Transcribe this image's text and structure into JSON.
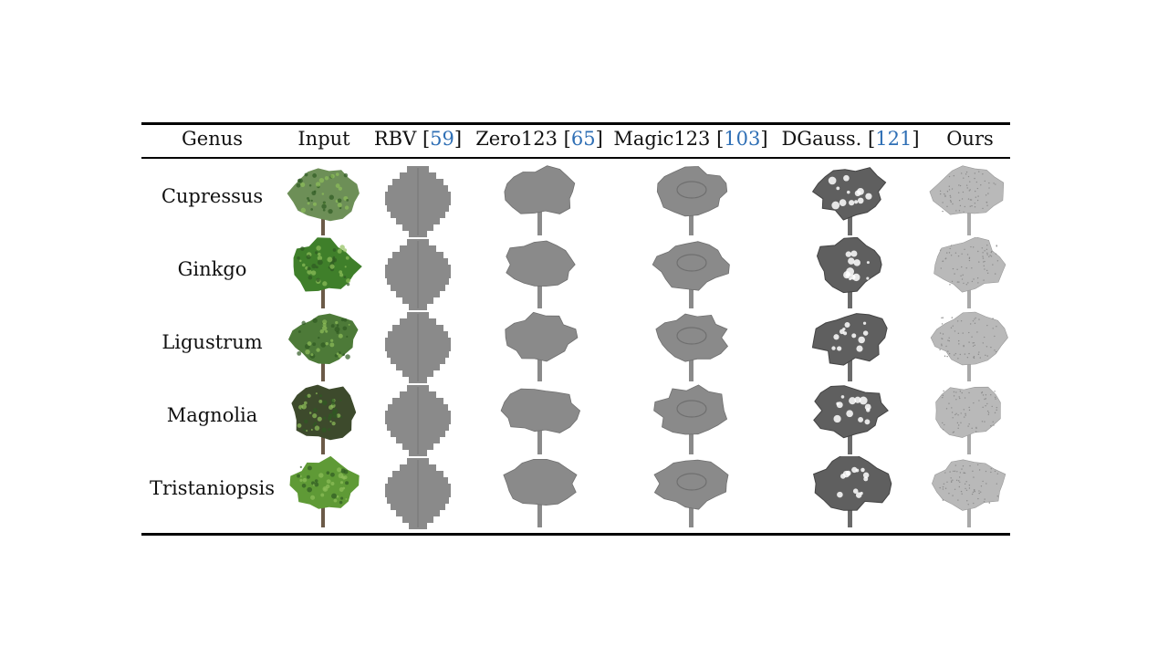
{
  "header": {
    "genus": "Genus",
    "input": "Input",
    "methods": [
      {
        "name": "RBV",
        "ref": "59"
      },
      {
        "name": "Zero123",
        "ref": "65"
      },
      {
        "name": "Magic123",
        "ref": "103"
      },
      {
        "name": "DGauss.",
        "ref": "121"
      }
    ],
    "ours": "Ours"
  },
  "rows": [
    {
      "genus": "Cupressus"
    },
    {
      "genus": "Ginkgo"
    },
    {
      "genus": "Ligustrum"
    },
    {
      "genus": "Magnolia"
    },
    {
      "genus": "Tristaniopsis"
    }
  ],
  "colors": {
    "rule": "#000000",
    "ref": "#2f6fb5",
    "mesh": "#8a8a8a",
    "ours_mesh": "#b9b9b9",
    "foliage": "#5e8f3e",
    "trunk": "#6b5a48"
  },
  "cell_content": {
    "input": "tree-photo",
    "rbv": "voxel-mesh",
    "zero123": "smooth-mesh",
    "magic123": "smooth-mesh",
    "dgauss": "holey-mesh",
    "ours": "detailed-mesh"
  }
}
